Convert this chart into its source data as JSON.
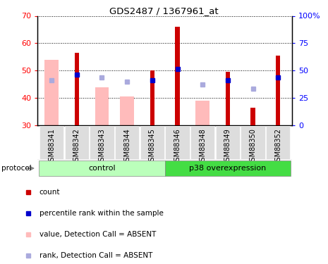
{
  "title": "GDS2487 / 1367961_at",
  "samples": [
    "GSM88341",
    "GSM88342",
    "GSM88343",
    "GSM88344",
    "GSM88345",
    "GSM88346",
    "GSM88348",
    "GSM88349",
    "GSM88350",
    "GSM88352"
  ],
  "count_values": [
    null,
    56.5,
    null,
    null,
    50.0,
    66.0,
    null,
    49.5,
    36.5,
    55.5
  ],
  "pink_values": [
    54.0,
    null,
    44.0,
    40.5,
    null,
    null,
    39.0,
    null,
    null,
    null
  ],
  "blue_square_values": [
    46.5,
    48.5,
    47.5,
    46.0,
    46.5,
    50.5,
    45.0,
    46.5,
    43.5,
    47.5
  ],
  "rank_absent": [
    true,
    false,
    true,
    true,
    false,
    false,
    true,
    false,
    true,
    false
  ],
  "ylim_left": [
    30,
    70
  ],
  "ylim_right": [
    0,
    100
  ],
  "yticks_left": [
    30,
    40,
    50,
    60,
    70
  ],
  "yticks_right": [
    0,
    25,
    50,
    75,
    100
  ],
  "right_tick_labels": [
    "0",
    "25",
    "50",
    "75",
    "100%"
  ],
  "control_color": "#bbffbb",
  "p38_color": "#44dd44",
  "bar_color_red": "#cc0000",
  "bar_color_pink": "#ffbbbb",
  "bar_color_blue": "#0000cc",
  "bar_color_lightblue": "#aaaadd",
  "cell_bg": "#dddddd",
  "legend_items": [
    "count",
    "percentile rank within the sample",
    "value, Detection Call = ABSENT",
    "rank, Detection Call = ABSENT"
  ],
  "legend_colors": [
    "#cc0000",
    "#0000cc",
    "#ffbbbb",
    "#aaaadd"
  ]
}
